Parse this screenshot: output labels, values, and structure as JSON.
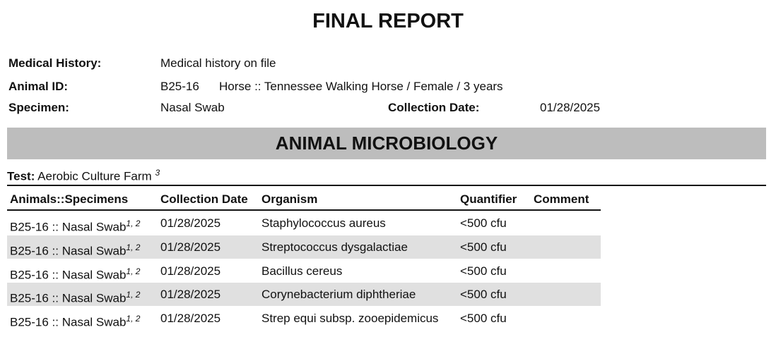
{
  "header": {
    "title": "FINAL REPORT"
  },
  "fields": {
    "medical_history": {
      "label": "Medical History:",
      "value": "Medical history on file"
    },
    "animal_id": {
      "label": "Animal ID:",
      "value": "B25-16",
      "description": "Horse :: Tennessee Walking Horse / Female / 3 years"
    },
    "specimen": {
      "label": "Specimen:",
      "value": "Nasal Swab"
    },
    "collection_date": {
      "label": "Collection Date:",
      "value": "01/28/2025"
    }
  },
  "section": {
    "title": "ANIMAL MICROBIOLOGY"
  },
  "test": {
    "label": "Test:",
    "value": "Aerobic Culture Farm",
    "note": "3"
  },
  "table": {
    "headers": [
      "Animals::Specimens",
      "Collection Date",
      "Organism",
      "Quantifier",
      "Comment"
    ],
    "rows": [
      {
        "specimen": "B25-16 :: Nasal Swab",
        "note": "1, 2",
        "date": "01/28/2025",
        "organism": "Staphylococcus aureus",
        "quantifier": "<500 cfu"
      },
      {
        "specimen": "B25-16 :: Nasal Swab",
        "note": "1, 2",
        "date": "01/28/2025",
        "organism": "Streptococcus dysgalactiae",
        "quantifier": "<500 cfu"
      },
      {
        "specimen": "B25-16 :: Nasal Swab",
        "note": "1, 2",
        "date": "01/28/2025",
        "organism": "Bacillus cereus",
        "quantifier": "<500 cfu"
      },
      {
        "specimen": "B25-16 :: Nasal Swab",
        "note": "1, 2",
        "date": "01/28/2025",
        "organism": "Corynebacterium diphtheriae",
        "quantifier": "<500 cfu"
      },
      {
        "specimen": "B25-16 :: Nasal Swab",
        "note": "1, 2",
        "date": "01/28/2025",
        "organism": "Strep equi subsp. zooepidemicus",
        "quantifier": "<500 cfu"
      }
    ]
  }
}
